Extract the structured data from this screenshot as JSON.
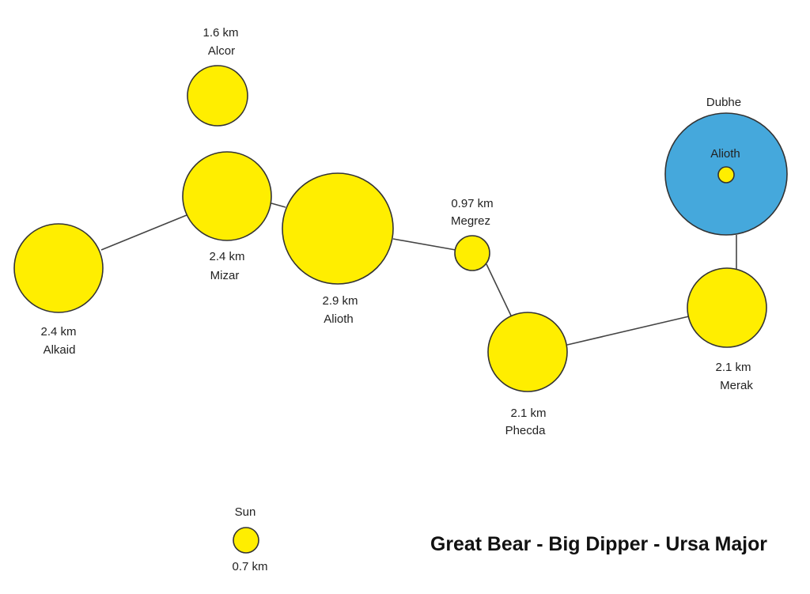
{
  "colors": {
    "star_yellow": "#ffee00",
    "dubhe_blue": "#45a8dc",
    "outline": "#333333"
  },
  "title": "Great Bear - Big Dipper - Ursa Major",
  "stars": {
    "alcor": {
      "name": "Alcor",
      "size": "1.6  km"
    },
    "mizar": {
      "name": "Mizar",
      "size": "2.4  km"
    },
    "alkaid": {
      "name": "Alkaid",
      "size": "2.4 km"
    },
    "alioth": {
      "name": "Alioth",
      "size": "2.9 km"
    },
    "megrez": {
      "name": "Megrez",
      "size": "0.97 km"
    },
    "phecda": {
      "name": "Phecda",
      "size": "2.1  km"
    },
    "merak": {
      "name": "Merak",
      "size": "2.1 km"
    },
    "dubhe": {
      "name": "Dubhe",
      "inner_label": "Alioth"
    },
    "sun": {
      "name": "Sun",
      "size": "0.7 km"
    }
  }
}
